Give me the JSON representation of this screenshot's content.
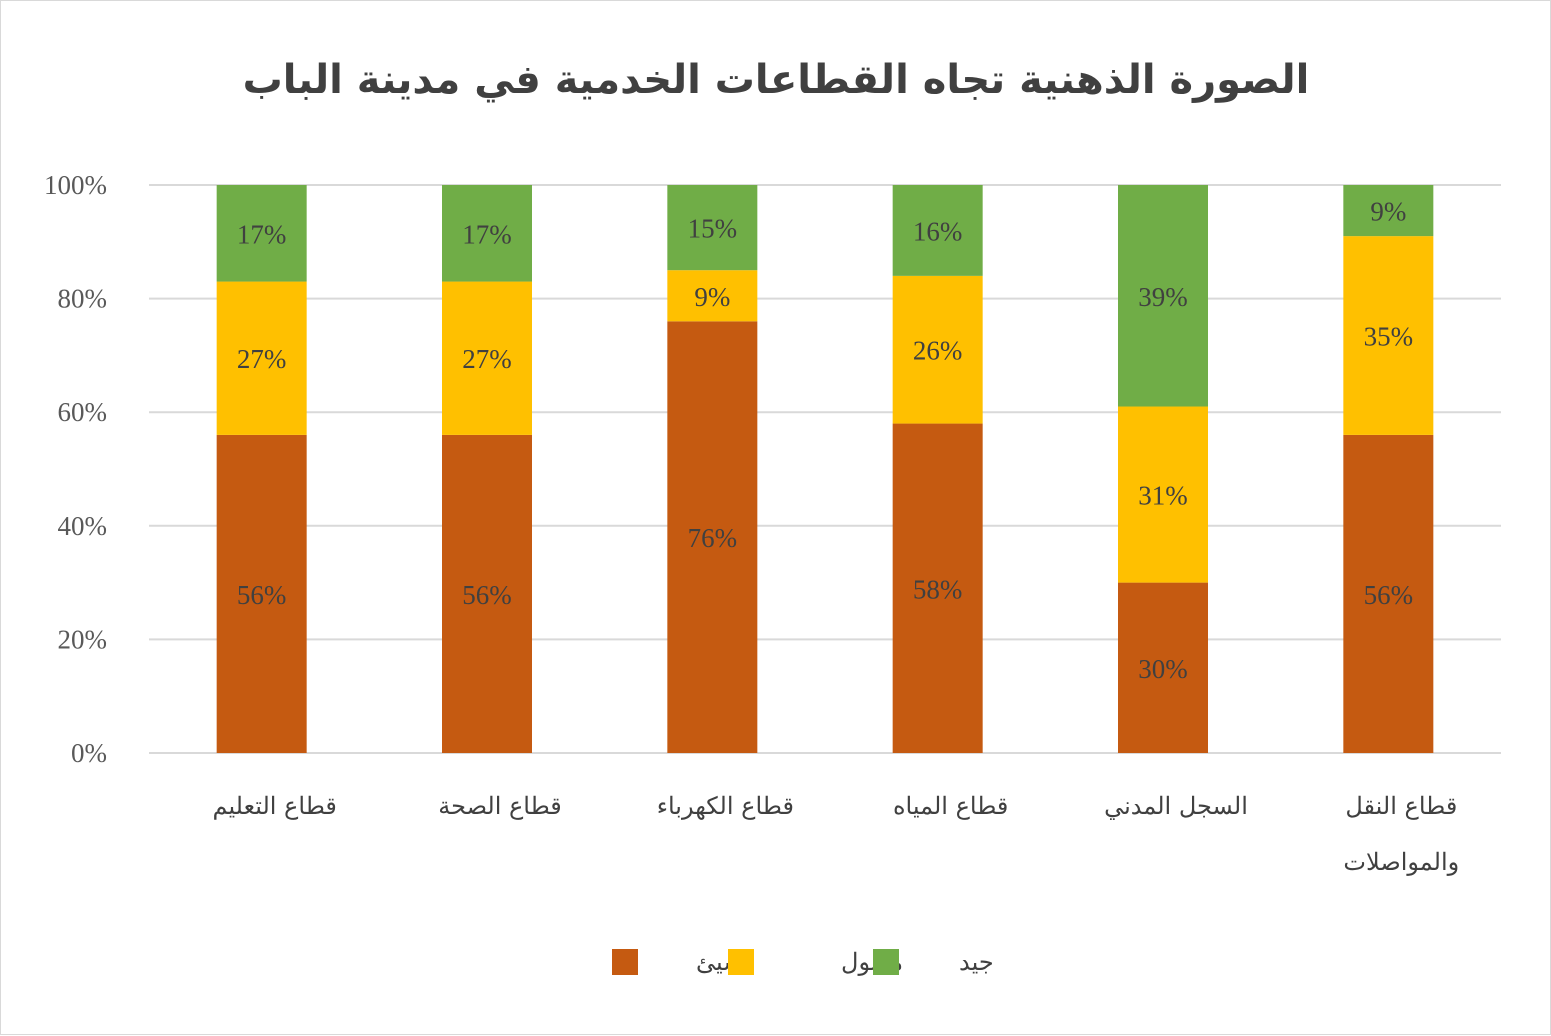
{
  "chart_data": {
    "type": "bar",
    "stacked": true,
    "title": "الصورة الذهنية تجاه القطاعات الخدمية في مدينة الباب",
    "categories": [
      [
        "قطاع التعليم"
      ],
      [
        "قطاع الصحة"
      ],
      [
        "قطاع الكهرباء"
      ],
      [
        "قطاع المياه"
      ],
      [
        "السجل المدني"
      ],
      [
        "قطاع النقل",
        "والمواصلات"
      ]
    ],
    "series": [
      {
        "name": "سيئ",
        "color": "#c55a11",
        "values": [
          56,
          56,
          76,
          58,
          30,
          56
        ],
        "labels": [
          "56%",
          "56%",
          "76%",
          "58%",
          "30%",
          "56%"
        ]
      },
      {
        "name": "مقبول",
        "color": "#ffc000",
        "values": [
          27,
          27,
          9,
          26,
          31,
          35
        ],
        "labels": [
          "27%",
          "27%",
          "9%",
          "26%",
          "31%",
          "35%"
        ]
      },
      {
        "name": "جيد",
        "color": "#70ad47",
        "values": [
          17,
          17,
          15,
          16,
          39,
          9
        ],
        "labels": [
          "17%",
          "17%",
          "15%",
          "16%",
          "39%",
          "9%"
        ]
      }
    ],
    "y_ticks": [
      "0%",
      "20%",
      "40%",
      "60%",
      "80%",
      "100%"
    ],
    "ylim": [
      0,
      100
    ],
    "grid": true,
    "gridline_color": "#d9d9d9",
    "legend_position": "bottom"
  }
}
